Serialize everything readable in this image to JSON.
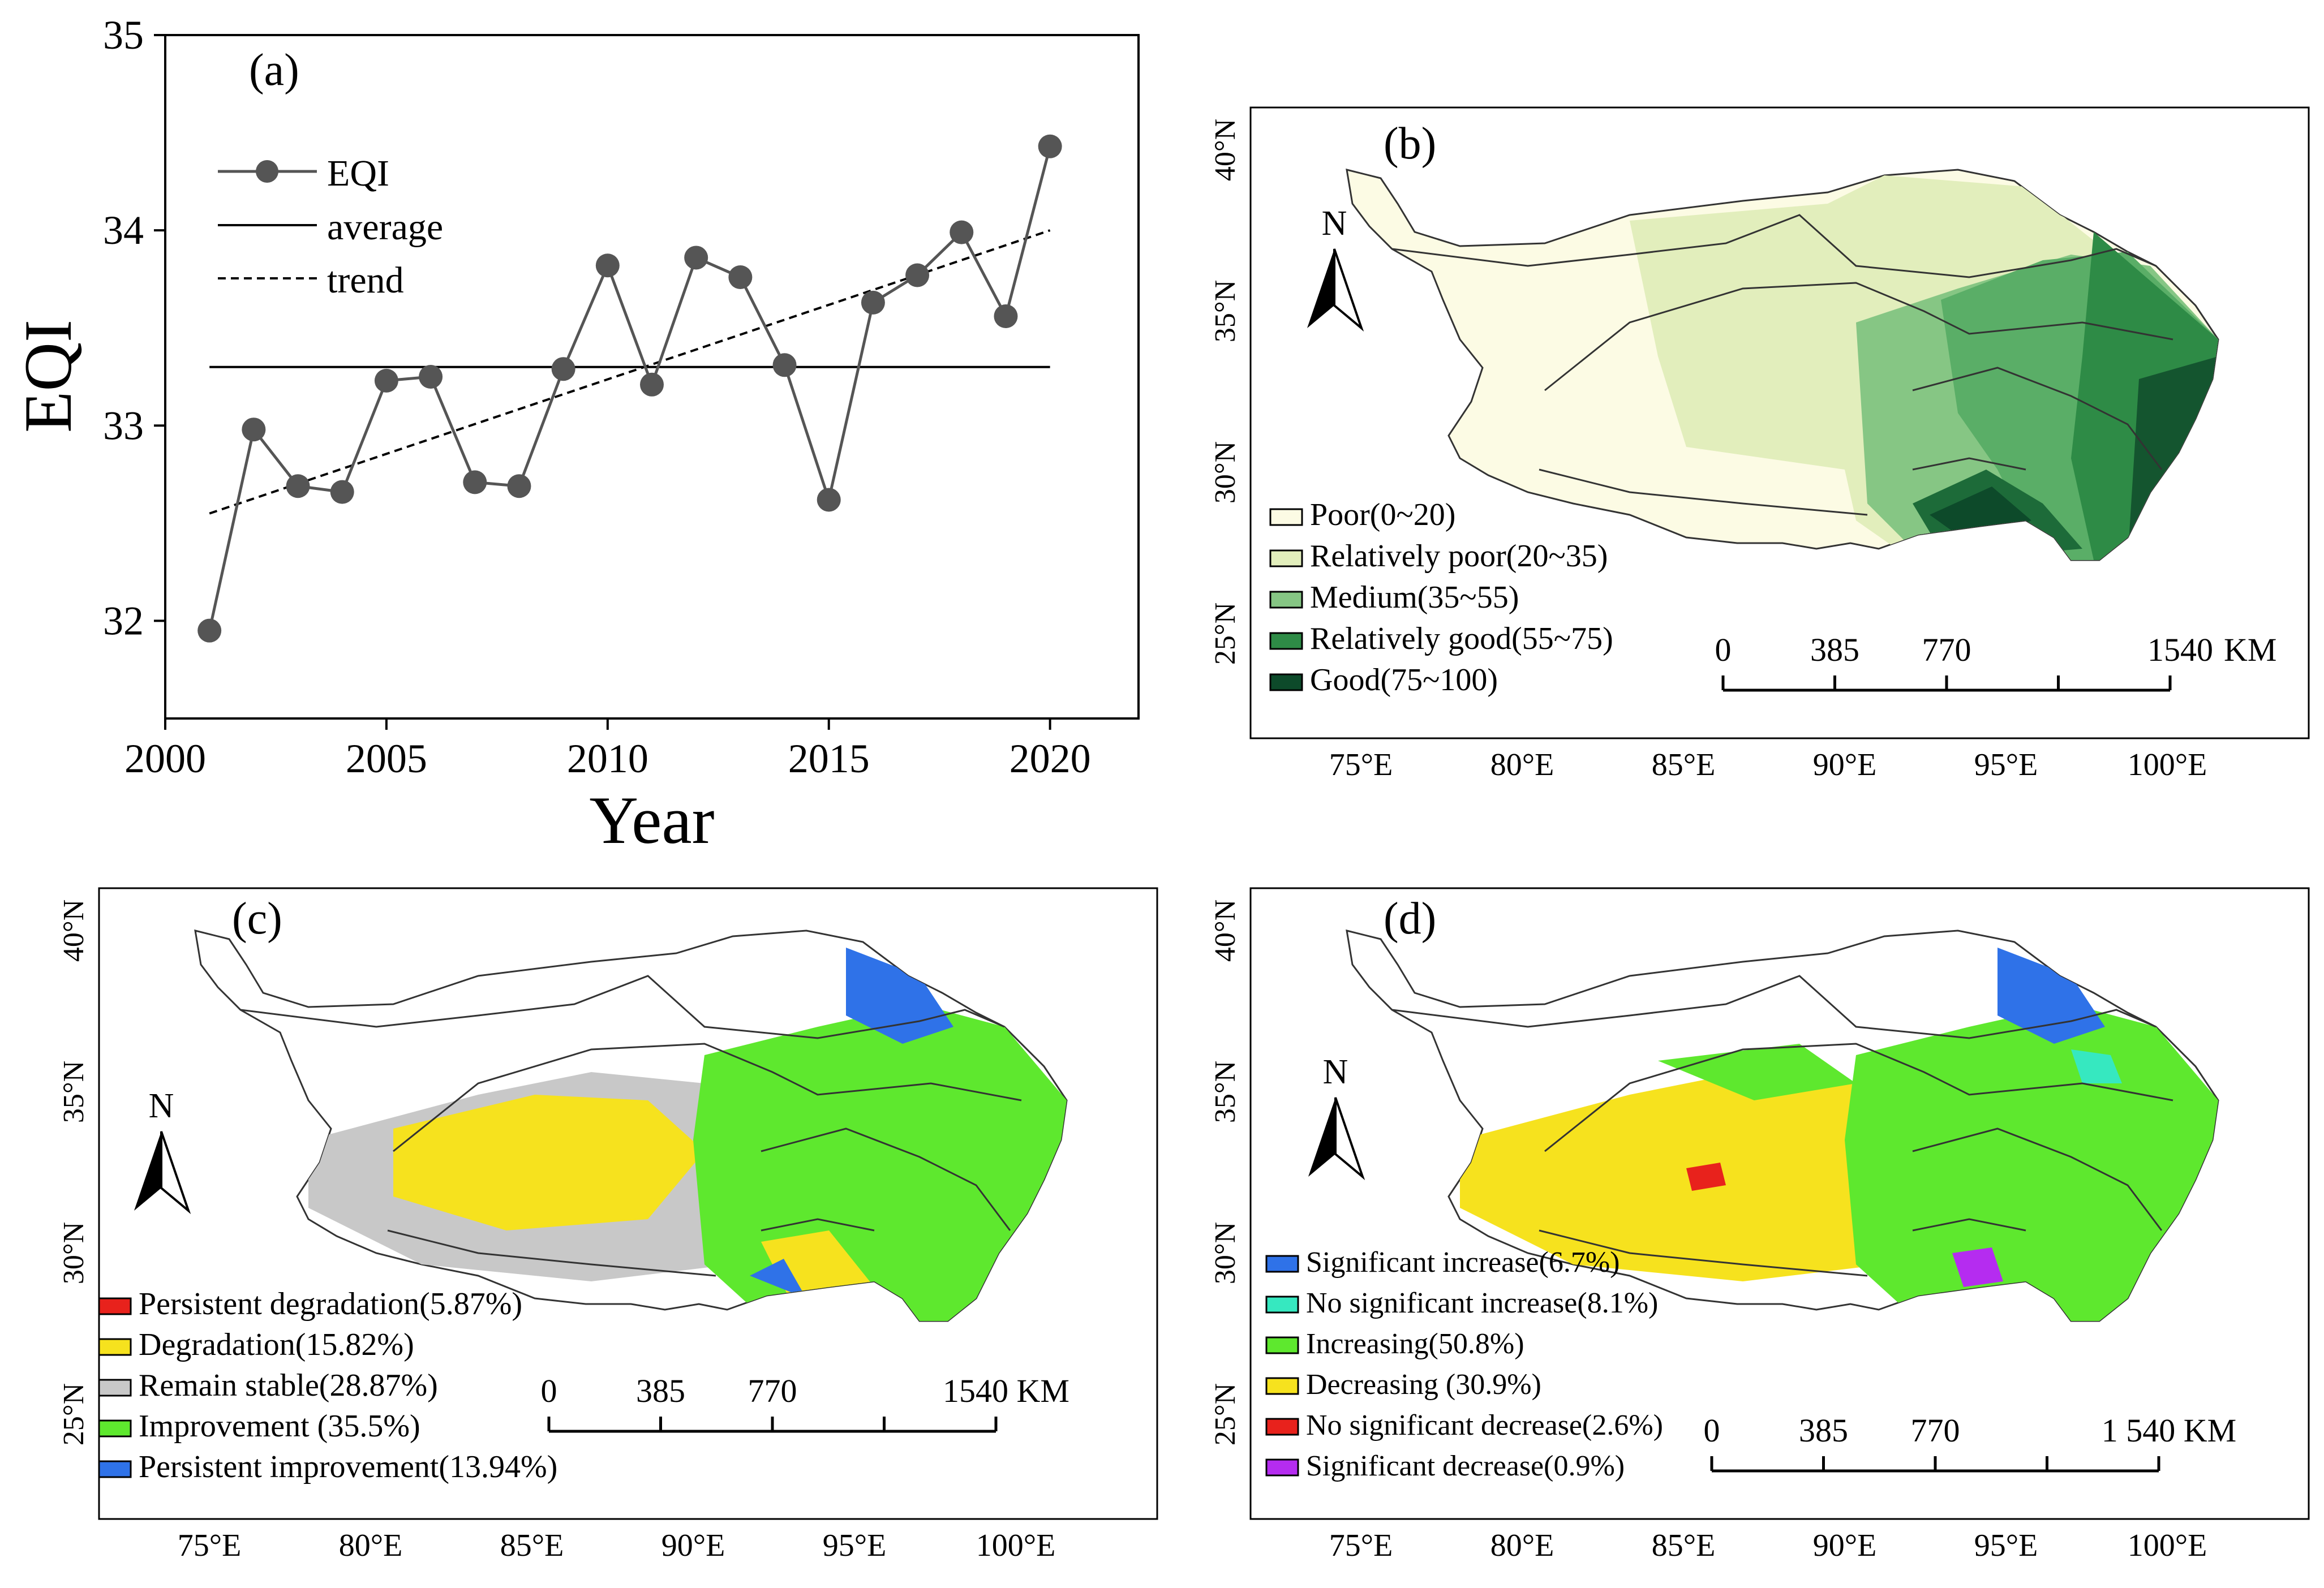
{
  "panel_a": {
    "label": "(a)",
    "xlabel": "Year",
    "ylabel": "EQI",
    "legend": {
      "eqi": "EQI",
      "average": "average",
      "trend": "trend"
    },
    "chart_data": {
      "type": "line",
      "title": "(a)",
      "xlabel": "Year",
      "ylabel": "EQI",
      "xlim": [
        2000,
        2022
      ],
      "ylim": [
        31.5,
        35
      ],
      "xticks": [
        2000,
        2005,
        2010,
        2015,
        2020
      ],
      "yticks": [
        32,
        33,
        34,
        35
      ],
      "series": [
        {
          "name": "EQI",
          "x": [
            2001,
            2002,
            2003,
            2004,
            2005,
            2006,
            2007,
            2008,
            2009,
            2010,
            2011,
            2012,
            2013,
            2014,
            2015,
            2016,
            2017,
            2018,
            2019,
            2020
          ],
          "y": [
            31.95,
            32.98,
            32.69,
            32.66,
            33.23,
            33.25,
            32.71,
            32.69,
            33.29,
            33.82,
            33.21,
            33.86,
            33.76,
            33.31,
            32.62,
            33.63,
            33.77,
            33.99,
            33.56,
            34.43
          ]
        },
        {
          "name": "average",
          "x": [
            2001,
            2020
          ],
          "y": [
            33.3,
            33.3
          ]
        },
        {
          "name": "trend",
          "x": [
            2001,
            2020
          ],
          "y": [
            32.55,
            34.0
          ]
        }
      ]
    }
  },
  "panel_b": {
    "label": "(b)",
    "legend": [
      {
        "label": "Poor(0~20)",
        "color": "#fcfbe4"
      },
      {
        "label": "Relatively poor(20~35)",
        "color": "#e2eebc"
      },
      {
        "label": "Medium(35~55)",
        "color": "#86c684"
      },
      {
        "label": "Relatively good(55~75)",
        "color": "#2e8b46"
      },
      {
        "label": "Good(75~100)",
        "color": "#0d4a2a"
      }
    ],
    "scale": {
      "ticks": [
        "0",
        "385",
        "770",
        "1540"
      ],
      "unit": "KM"
    }
  },
  "panel_c": {
    "label": "(c)",
    "legend": [
      {
        "label": "Persistent degradation(5.87%)",
        "color": "#e8221c"
      },
      {
        "label": "Degradation(15.82%)",
        "color": "#f6e21e"
      },
      {
        "label": "Remain stable(28.87%)",
        "color": "#c8c8c8"
      },
      {
        "label": "Improvement (35.5%)",
        "color": "#5ee82e"
      },
      {
        "label": "Persistent  improvement(13.94%)",
        "color": "#2f72e8"
      }
    ],
    "scale": {
      "ticks": [
        "0",
        "385",
        "770",
        "1540 KM"
      ],
      "unit": ""
    }
  },
  "panel_d": {
    "label": "(d)",
    "legend": [
      {
        "label": "Significant increase(6.7%)",
        "color": "#2f72e8"
      },
      {
        "label": "No significant increase(8.1%)",
        "color": "#36e8c0"
      },
      {
        "label": "Increasing(50.8%)",
        "color": "#5ee82e"
      },
      {
        "label": "Decreasing (30.9%)",
        "color": "#f6e21e"
      },
      {
        "label": "No significant decrease(2.6%)",
        "color": "#e8221c"
      },
      {
        "label": "Significant decrease(0.9%)",
        "color": "#b52cf0"
      }
    ],
    "scale": {
      "ticks": [
        "0",
        "385",
        "770",
        "1 540 KM"
      ],
      "unit": ""
    }
  },
  "map_axes": {
    "lon_labels": [
      "75°E",
      "80°E",
      "85°E",
      "90°E",
      "95°E",
      "100°E"
    ],
    "lat_labels": [
      "40°N",
      "35°N",
      "30°N",
      "25°N"
    ],
    "north": "N"
  },
  "colors": {
    "marker": "#555555",
    "boundary": "#222222"
  }
}
